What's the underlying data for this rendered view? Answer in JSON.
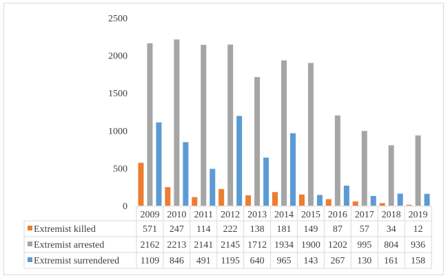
{
  "chart_data": {
    "type": "bar",
    "title": "",
    "xlabel": "",
    "ylabel": "",
    "ylim": [
      0,
      2500
    ],
    "yticks": [
      0,
      500,
      1000,
      1500,
      2000,
      2500
    ],
    "grid": false,
    "legend": "table-below",
    "categories": [
      "2009",
      "2010",
      "2011",
      "2012",
      "2013",
      "2014",
      "2015",
      "2016",
      "2017",
      "2018",
      "2019"
    ],
    "series": [
      {
        "name": "Extremist killed",
        "color": "#ed7d31",
        "values": [
          571,
          247,
          114,
          222,
          138,
          181,
          149,
          87,
          57,
          34,
          12
        ]
      },
      {
        "name": "Extremist arrested",
        "color": "#a5a5a5",
        "values": [
          2162,
          2213,
          2141,
          2145,
          1712,
          1934,
          1900,
          1202,
          995,
          804,
          936
        ]
      },
      {
        "name": "Extremist surrendered",
        "color": "#5b9bd5",
        "values": [
          1109,
          846,
          491,
          1195,
          640,
          965,
          143,
          267,
          130,
          161,
          158
        ]
      }
    ]
  }
}
